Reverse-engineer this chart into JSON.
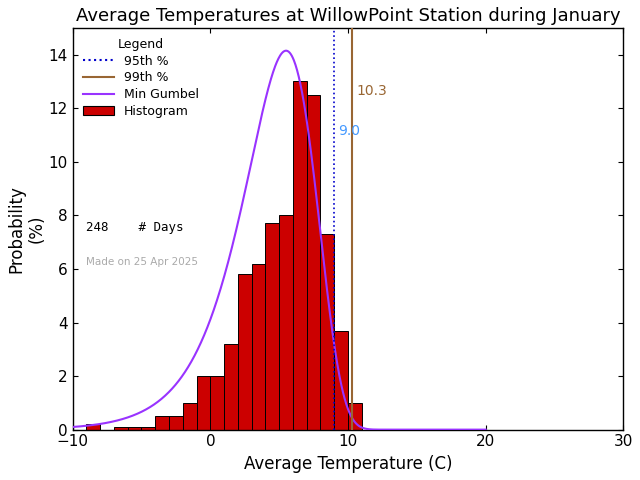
{
  "title": "Average Temperatures at WillowPoint Station during January",
  "xlabel": "Average Temperature (C)",
  "ylabel_top": "Probability",
  "ylabel_bot": "(%)",
  "xlim": [
    -10,
    30
  ],
  "ylim": [
    0,
    15
  ],
  "xticks": [
    -10,
    0,
    10,
    20,
    30
  ],
  "yticks": [
    0,
    2,
    4,
    6,
    8,
    10,
    12,
    14
  ],
  "bin_left_edges": [
    -9,
    -8,
    -7,
    -6,
    -5,
    -4,
    -3,
    -2,
    -1,
    0,
    1,
    2,
    3,
    4,
    5,
    6,
    7,
    8,
    9,
    10,
    11
  ],
  "hist_heights": [
    0.2,
    0.0,
    0.1,
    0.1,
    0.1,
    0.5,
    0.5,
    1.0,
    2.0,
    2.0,
    3.2,
    5.8,
    6.2,
    7.7,
    8.0,
    13.0,
    12.5,
    7.3,
    3.7,
    1.0,
    0.0
  ],
  "bar_color": "#cc0000",
  "bar_edgecolor": "#000000",
  "gumbel_mu": 5.5,
  "gumbel_beta": 2.6,
  "gumbel_scale": 100.0,
  "pct95": 9.0,
  "pct99": 10.3,
  "pct95_color": "#0000cc",
  "pct99_color": "#996633",
  "pct95_label_color": "#4499ff",
  "pct95_label": "9.0",
  "pct99_label": "10.3",
  "pct99_label_color": "#996633",
  "n_days": 248,
  "watermark": "Made on 25 Apr 2025",
  "bg_color": "#ffffff",
  "gumbel_color": "#9933ff",
  "legend_title": "Legend",
  "title_fontsize": 13,
  "axis_fontsize": 12,
  "tick_fontsize": 11,
  "legend_fontsize": 9
}
